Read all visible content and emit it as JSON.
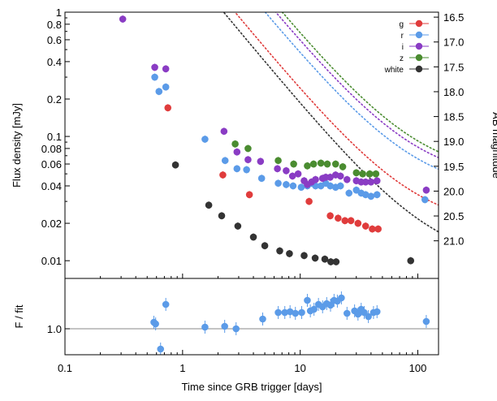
{
  "chart_data": [
    {
      "type": "scatter",
      "panel": "light curve",
      "xlabel": "Time since GRB trigger [days]",
      "ylabel": "Flux density [mJy]",
      "ylabel_right": "AB magnitude",
      "x_scale": "log",
      "y_scale": "log",
      "xlim": [
        0.1,
        150
      ],
      "ylim": [
        0.0072,
        1.0
      ],
      "grid": false,
      "legend_position": "top-right",
      "x_ticks": [
        {
          "value": 0.1,
          "label": "0.1"
        },
        {
          "value": 1,
          "label": "1"
        },
        {
          "value": 10,
          "label": "10"
        },
        {
          "value": 100,
          "label": "100"
        }
      ],
      "y_ticks": [
        {
          "value": 1,
          "label": "1"
        },
        {
          "value": 0.8,
          "label": "0.8"
        },
        {
          "value": 0.6,
          "label": "0.6"
        },
        {
          "value": 0.4,
          "label": "0.4"
        },
        {
          "value": 0.2,
          "label": "0.2"
        },
        {
          "value": 0.1,
          "label": "0.1"
        },
        {
          "value": 0.08,
          "label": "0.08"
        },
        {
          "value": 0.06,
          "label": "0.06"
        },
        {
          "value": 0.04,
          "label": "0.04"
        },
        {
          "value": 0.02,
          "label": "0.02"
        },
        {
          "value": 0.01,
          "label": "0.01"
        }
      ],
      "right_ticks": [
        {
          "value": 16.5,
          "label": "16.5"
        },
        {
          "value": 17.0,
          "label": "17.0"
        },
        {
          "value": 17.5,
          "label": "17.5"
        },
        {
          "value": 18.0,
          "label": "18.0"
        },
        {
          "value": 18.5,
          "label": "18.5"
        },
        {
          "value": 19.0,
          "label": "19.0"
        },
        {
          "value": 19.5,
          "label": "19.5"
        },
        {
          "value": 20.0,
          "label": "20.0"
        },
        {
          "value": 20.5,
          "label": "20.5"
        },
        {
          "value": 21.0,
          "label": "21.0"
        }
      ],
      "series": [
        {
          "name": "g",
          "color": "#e03c3c",
          "fit_norm": 3.2,
          "fit_host": 0.018,
          "points": [
            [
              0.75,
              0.17
            ],
            [
              2.2,
              0.049
            ],
            [
              3.7,
              0.034
            ],
            [
              11.9,
              0.03
            ],
            [
              18,
              0.023
            ],
            [
              21,
              0.022
            ],
            [
              24,
              0.021
            ],
            [
              27,
              0.021
            ],
            [
              31,
              0.02
            ],
            [
              36,
              0.019
            ],
            [
              41,
              0.018
            ],
            [
              46,
              0.018
            ]
          ]
        },
        {
          "name": "r",
          "color": "#5b9be8",
          "fit_norm": 6.2,
          "fit_host": 0.035,
          "points": [
            [
              0.58,
              0.3
            ],
            [
              0.63,
              0.23
            ],
            [
              0.72,
              0.25
            ],
            [
              1.55,
              0.095
            ],
            [
              2.3,
              0.064
            ],
            [
              2.9,
              0.055
            ],
            [
              3.5,
              0.054
            ],
            [
              4.7,
              0.046
            ],
            [
              6.5,
              0.042
            ],
            [
              7.6,
              0.041
            ],
            [
              8.7,
              0.04
            ],
            [
              10.2,
              0.039
            ],
            [
              11.5,
              0.04
            ],
            [
              12.5,
              0.042
            ],
            [
              13.5,
              0.04
            ],
            [
              15,
              0.04
            ],
            [
              16.5,
              0.042
            ],
            [
              18,
              0.04
            ],
            [
              20,
              0.039
            ],
            [
              22,
              0.04
            ],
            [
              26,
              0.035
            ],
            [
              30,
              0.037
            ],
            [
              33,
              0.035
            ],
            [
              36,
              0.034
            ],
            [
              40,
              0.033
            ],
            [
              45,
              0.034
            ],
            [
              115,
              0.031
            ]
          ]
        },
        {
          "name": "i",
          "color": "#8a3cc4",
          "fit_norm": 7.8,
          "fit_host": 0.043,
          "points": [
            [
              0.31,
              0.88
            ],
            [
              0.58,
              0.36
            ],
            [
              0.72,
              0.35
            ],
            [
              2.25,
              0.11
            ],
            [
              2.9,
              0.075
            ],
            [
              3.6,
              0.065
            ],
            [
              4.6,
              0.063
            ],
            [
              6.4,
              0.055
            ],
            [
              7.6,
              0.053
            ],
            [
              8.6,
              0.048
            ],
            [
              9.6,
              0.05
            ],
            [
              10.8,
              0.044
            ],
            [
              11.5,
              0.041
            ],
            [
              12.5,
              0.043
            ],
            [
              13.5,
              0.045
            ],
            [
              15.5,
              0.046
            ],
            [
              16.5,
              0.047
            ],
            [
              18,
              0.047
            ],
            [
              20,
              0.049
            ],
            [
              22,
              0.048
            ],
            [
              25,
              0.045
            ],
            [
              30,
              0.044
            ],
            [
              33,
              0.043
            ],
            [
              36,
              0.043
            ],
            [
              40,
              0.043
            ],
            [
              45,
              0.044
            ],
            [
              118,
              0.037
            ]
          ]
        },
        {
          "name": "z",
          "color": "#4a8c30",
          "fit_norm": 9.0,
          "fit_host": 0.047,
          "points": [
            [
              2.8,
              0.087
            ],
            [
              3.6,
              0.08
            ],
            [
              6.5,
              0.064
            ],
            [
              8.8,
              0.06
            ],
            [
              11.5,
              0.058
            ],
            [
              13,
              0.06
            ],
            [
              15,
              0.061
            ],
            [
              17,
              0.06
            ],
            [
              20,
              0.06
            ],
            [
              23,
              0.057
            ],
            [
              30,
              0.051
            ],
            [
              34,
              0.05
            ],
            [
              39,
              0.05
            ],
            [
              44,
              0.05
            ]
          ]
        },
        {
          "name": "white",
          "color": "#333333",
          "fit_norm": 2.5,
          "fit_host": 0.0092,
          "points": [
            [
              0.87,
              0.059
            ],
            [
              1.67,
              0.028
            ],
            [
              2.15,
              0.023
            ],
            [
              2.95,
              0.019
            ],
            [
              4.0,
              0.0155
            ],
            [
              5.0,
              0.0132
            ],
            [
              6.7,
              0.012
            ],
            [
              8.1,
              0.0114
            ],
            [
              10.8,
              0.011
            ],
            [
              13.4,
              0.0105
            ],
            [
              16.2,
              0.0103
            ],
            [
              18.2,
              0.0098
            ],
            [
              20.2,
              0.0098
            ],
            [
              87,
              0.01
            ]
          ]
        }
      ]
    },
    {
      "type": "scatter",
      "panel": "residuals",
      "xlabel": "Time since GRB trigger [days]",
      "ylabel": "F / fit",
      "x_scale": "log",
      "xlim": [
        0.1,
        150
      ],
      "ylim": [
        0.68,
        1.62
      ],
      "reference_line": 1.0,
      "y_ticks": [
        {
          "value": 1.0,
          "label": "1.0"
        }
      ],
      "series": [
        {
          "name": "r",
          "color": "#5b9be8",
          "points": [
            [
              0.57,
              1.08
            ],
            [
              0.59,
              1.06
            ],
            [
              0.65,
              0.75
            ],
            [
              0.72,
              1.3
            ],
            [
              1.55,
              1.02
            ],
            [
              2.28,
              1.03
            ],
            [
              2.85,
              1.0
            ],
            [
              4.8,
              1.12
            ],
            [
              6.5,
              1.2
            ],
            [
              7.4,
              1.2
            ],
            [
              8.2,
              1.21
            ],
            [
              9.1,
              1.19
            ],
            [
              10.3,
              1.2
            ],
            [
              11.5,
              1.35
            ],
            [
              12.2,
              1.22
            ],
            [
              13.1,
              1.24
            ],
            [
              14.3,
              1.3
            ],
            [
              15.5,
              1.27
            ],
            [
              16.8,
              1.31
            ],
            [
              18.1,
              1.29
            ],
            [
              19.4,
              1.35
            ],
            [
              20.7,
              1.34
            ],
            [
              22.4,
              1.38
            ],
            [
              25,
              1.19
            ],
            [
              29,
              1.22
            ],
            [
              31,
              1.18
            ],
            [
              33,
              1.24
            ],
            [
              35,
              1.2
            ],
            [
              38,
              1.15
            ],
            [
              42,
              1.2
            ],
            [
              45,
              1.21
            ],
            [
              118,
              1.09
            ]
          ]
        }
      ]
    }
  ]
}
